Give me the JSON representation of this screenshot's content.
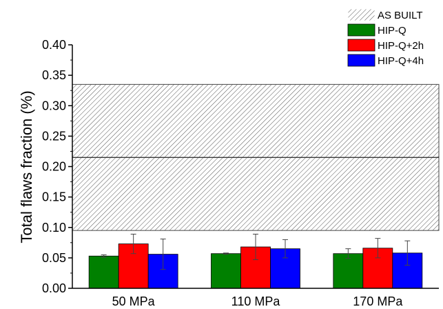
{
  "chart_data": {
    "type": "bar",
    "title": "",
    "xlabel": "",
    "ylabel": "Total flaws fraction (%)",
    "ylim": [
      0,
      0.4
    ],
    "yticks": [
      "0.00",
      "0.05",
      "0.10",
      "0.15",
      "0.20",
      "0.25",
      "0.30",
      "0.35",
      "0.40"
    ],
    "categories": [
      "50 MPa",
      "110 MPa",
      "170 MPa"
    ],
    "series": [
      {
        "name": "HIP-Q",
        "color": "#008000",
        "values": [
          0.053,
          0.057,
          0.057
        ],
        "errors": [
          0.002,
          0.001,
          0.008
        ]
      },
      {
        "name": "HIP-Q+2h",
        "color": "#ff0000",
        "values": [
          0.073,
          0.068,
          0.066
        ],
        "errors": [
          0.016,
          0.021,
          0.016
        ]
      },
      {
        "name": "HIP-Q+4h",
        "color": "#0000ff",
        "values": [
          0.056,
          0.065,
          0.058
        ],
        "errors": [
          0.025,
          0.015,
          0.02
        ]
      }
    ],
    "reference_band": {
      "name": "AS BUILT",
      "mean": 0.215,
      "low": 0.095,
      "high": 0.335,
      "pattern": "diagonal-hatch"
    },
    "legend_position": "top-right",
    "grid": false
  }
}
